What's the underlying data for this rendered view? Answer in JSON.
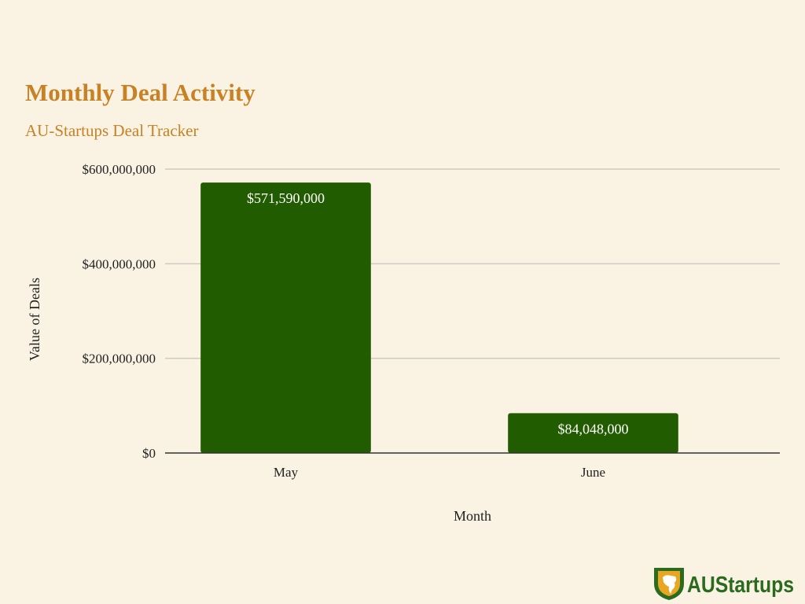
{
  "chart_data": {
    "type": "bar",
    "title": "Monthly Deal Activity",
    "subtitle": "AU-Startups Deal Tracker",
    "categories": [
      "May",
      "June"
    ],
    "values": [
      571590000,
      84048000
    ],
    "value_labels": [
      "$571,590,000",
      "$84,048,000"
    ],
    "xlabel": "Month",
    "ylabel": "Value of Deals",
    "ylim": [
      0,
      600000000
    ],
    "yticks": [
      {
        "value": 0,
        "label": "$0"
      },
      {
        "value": 200000000,
        "label": "$200,000,000"
      },
      {
        "value": 400000000,
        "label": "$400,000,000"
      },
      {
        "value": 600000000,
        "label": "$600,000,000"
      }
    ],
    "grid": true,
    "legend": "none"
  },
  "colors": {
    "bar": "#225c00",
    "title": "#c88124",
    "background": "#faf3e3",
    "gridline": "#cfcac0",
    "axis": "#333333",
    "bar_label": "#ffffff",
    "logo_text": "#2a6b1f",
    "logo_accent": "#e9a623"
  },
  "logo": {
    "text": "AUStartups",
    "icon": "africa-shield-icon"
  }
}
